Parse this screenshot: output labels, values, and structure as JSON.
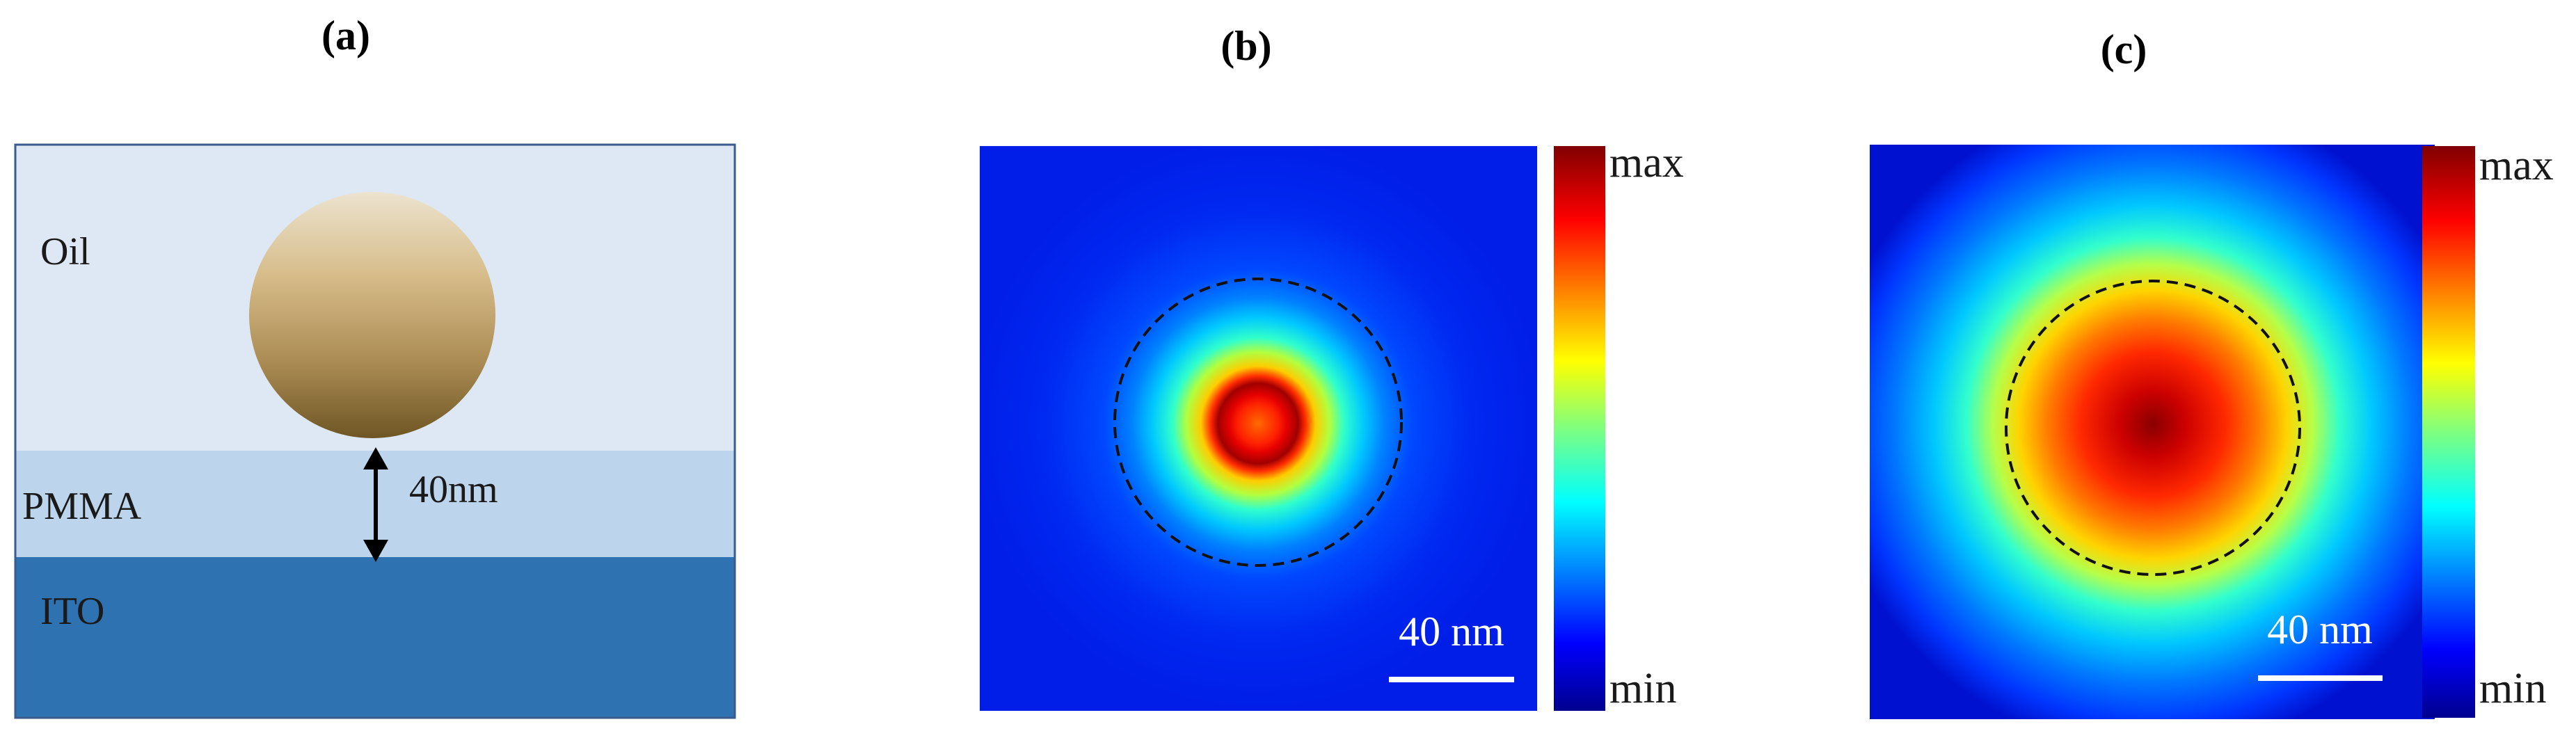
{
  "panels": {
    "a": {
      "label": "(a)",
      "layers": [
        "Oil",
        "PMMA",
        "ITO"
      ],
      "gap_label": "40nm"
    },
    "b": {
      "label": "(b)",
      "colorbar": {
        "max": "max",
        "min": "min"
      },
      "scalebar": "40 nm"
    },
    "c": {
      "label": "(c)",
      "colorbar": {
        "max": "max",
        "min": "min"
      },
      "scalebar": "40 nm"
    }
  },
  "colors": {
    "oil": "#dde8f4",
    "pmma": "#bcd4ec",
    "ito": "#2f72b2",
    "frame": "#3a5b8c",
    "dashed": "#111111"
  }
}
